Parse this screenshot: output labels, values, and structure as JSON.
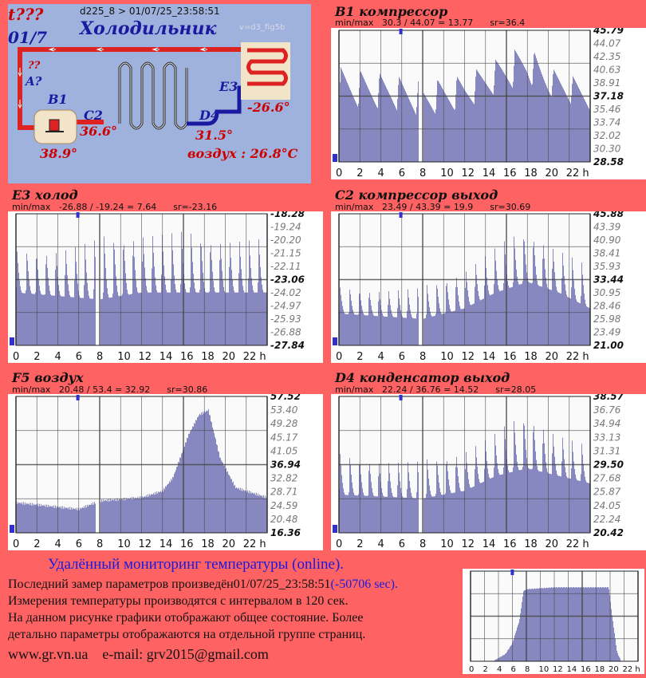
{
  "scheme": {
    "tq": "t???",
    "date_short": "01/7",
    "device_line": "d225_8  >  01/07/25_23:58:51",
    "title": "Холодильник",
    "version": "v=d3_fig5b",
    "q_mark": "??",
    "a_label": "A?",
    "b1_label": "B1",
    "b1_value": "38.9°",
    "c2_label": "C2",
    "c2_value": "36.6°",
    "d4_label": "D4",
    "d4_value": "31.5°",
    "e3_label": "E3",
    "e3_value": "-26.6°",
    "air_text": "воздух : 26.8°C"
  },
  "colors": {
    "background": "#ff6262",
    "fill": "#8888c0",
    "grid": "#444444",
    "marker": "#3030d0"
  },
  "chart_data": [
    {
      "type": "area",
      "title": "B1 компрессор",
      "stats": "min/max   30.3 / 44.07 = 13.77      sr=36.4",
      "x_ticks": [
        "0",
        "2",
        "4",
        "6",
        "8",
        "10",
        "12",
        "14",
        "16",
        "18",
        "20",
        "22 h"
      ],
      "y_ticks": [
        "45.79",
        "44.07",
        "42.35",
        "40.63",
        "38.91",
        "37.18",
        "35.46",
        "33.74",
        "32.02",
        "30.30",
        "28.58"
      ],
      "ylim": [
        28.58,
        45.79
      ],
      "pattern": "b1",
      "period": 13,
      "gap": [
        7.6,
        8.1
      ],
      "segments": [
        [
          0,
          34,
          41
        ],
        [
          5,
          34,
          40
        ],
        [
          8,
          33,
          39
        ],
        [
          12,
          34,
          40
        ],
        [
          15,
          36,
          42
        ],
        [
          18,
          37,
          44.07
        ],
        [
          20,
          36,
          41
        ],
        [
          24,
          34,
          39
        ]
      ]
    },
    {
      "type": "area",
      "title": "E3 холод",
      "stats": "min/max   -26.88 / -19.24 = 7.64      sr=-23.16",
      "x_ticks": [
        "0",
        "2",
        "4",
        "6",
        "8",
        "10",
        "12",
        "14",
        "16",
        "18",
        "20",
        "22 h"
      ],
      "y_ticks": [
        "-18.28",
        "-19.24",
        "-20.20",
        "-21.15",
        "-22.11",
        "-23.06",
        "-24.02",
        "-24.97",
        "-25.93",
        "-26.88",
        "-27.84"
      ],
      "ylim": [
        -27.84,
        -18.28
      ],
      "pattern": "spikes",
      "period": 26,
      "gap": [
        7.6,
        8.1
      ],
      "segments": [
        [
          0,
          -24,
          -21
        ],
        [
          8,
          -24.5,
          -20
        ],
        [
          12,
          -24,
          -19.24
        ],
        [
          24,
          -24,
          -20
        ]
      ]
    },
    {
      "type": "area",
      "title": "C2 компрессор выход",
      "stats": "min/max   23.49 / 43.39 = 19.9      sr=30.69",
      "x_ticks": [
        "0",
        "2",
        "4",
        "6",
        "8",
        "10",
        "12",
        "14",
        "16",
        "18",
        "20",
        "22 h"
      ],
      "y_ticks": [
        "45.88",
        "43.39",
        "40.90",
        "38.41",
        "35.93",
        "33.44",
        "30.95",
        "28.46",
        "25.98",
        "23.49",
        "21.00"
      ],
      "ylim": [
        21.0,
        45.88
      ],
      "pattern": "spikes",
      "period": 26,
      "gap": [
        7.6,
        8.1
      ],
      "segments": [
        [
          0,
          27,
          32
        ],
        [
          8,
          26,
          32
        ],
        [
          12,
          28,
          36
        ],
        [
          15,
          31,
          40
        ],
        [
          18,
          33,
          43.39
        ],
        [
          21,
          31,
          40
        ],
        [
          24,
          28,
          36
        ]
      ]
    },
    {
      "type": "area",
      "title": "F5 воздух",
      "stats": "min/max   20.48 / 53.4 = 32.92      sr=30.86",
      "x_ticks": [
        "0",
        "2",
        "4",
        "6",
        "8",
        "10",
        "12",
        "14",
        "16",
        "18",
        "20",
        "22 h"
      ],
      "y_ticks": [
        "57.52",
        "53.40",
        "49.28",
        "45.17",
        "41.05",
        "36.94",
        "32.82",
        "28.71",
        "24.59",
        "20.48",
        "16.36"
      ],
      "ylim": [
        16.36,
        57.52
      ],
      "pattern": "smooth",
      "gap": [
        7.6,
        8.1
      ],
      "segments": [
        [
          0,
          25.5,
          25.5
        ],
        [
          6,
          23.5,
          23.5
        ],
        [
          8,
          26,
          26
        ],
        [
          12,
          27,
          27
        ],
        [
          14,
          29,
          29
        ],
        [
          15,
          33,
          33
        ],
        [
          16.5,
          46,
          46
        ],
        [
          17.5,
          52,
          52
        ],
        [
          18.4,
          53.4,
          53.4
        ],
        [
          19.5,
          39,
          39
        ],
        [
          21,
          30,
          30
        ],
        [
          24,
          27,
          27
        ]
      ]
    },
    {
      "type": "area",
      "title": "D4 конденсатор выход",
      "stats": "min/max   22.24 / 36.76 = 14.52      sr=28.05",
      "x_ticks": [
        "0",
        "2",
        "4",
        "6",
        "8",
        "10",
        "12",
        "14",
        "16",
        "18",
        "20",
        "22 h"
      ],
      "y_ticks": [
        "38.57",
        "36.76",
        "34.94",
        "33.13",
        "31.31",
        "29.50",
        "27.68",
        "25.87",
        "24.05",
        "22.24",
        "20.42"
      ],
      "ylim": [
        20.42,
        38.57
      ],
      "pattern": "spikes",
      "period": 26,
      "gap": [
        7.6,
        8.1
      ],
      "segments": [
        [
          0,
          25.5,
          31
        ],
        [
          8,
          25,
          30
        ],
        [
          12,
          26,
          32
        ],
        [
          15,
          28,
          34
        ],
        [
          18,
          29,
          36.76
        ],
        [
          21,
          28,
          34
        ],
        [
          24,
          27,
          32
        ]
      ]
    },
    {
      "type": "area",
      "title": "",
      "stats": "",
      "x_ticks": [
        "0",
        "2",
        "4",
        "6",
        "8",
        "10",
        "12",
        "14",
        "16",
        "18",
        "20",
        "22 h"
      ],
      "y_ticks": [],
      "ylim": [
        0,
        100
      ],
      "pattern": "smooth",
      "segments": [
        [
          0,
          0,
          0
        ],
        [
          3.2,
          0,
          0
        ],
        [
          5,
          8,
          8
        ],
        [
          6,
          20,
          20
        ],
        [
          7,
          45,
          45
        ],
        [
          7.6,
          78,
          78
        ],
        [
          8.2,
          80,
          80
        ],
        [
          12,
          82,
          82
        ],
        [
          19.8,
          82,
          82
        ],
        [
          20.3,
          50,
          50
        ],
        [
          21,
          10,
          10
        ],
        [
          21.6,
          0,
          0
        ],
        [
          24,
          0,
          0
        ]
      ]
    }
  ],
  "footer": {
    "heading": "Удалённый мониторинг температуры (online).",
    "line1_prefix": "Последний замер параметров произведён",
    "line1_date": "01/07/25_23:58:51",
    "line1_delta": "(-50706 sec).",
    "line2": "Измерения температуры  производятся с интервалом в 120 сек.",
    "line3": "На данном рисунке графики отображают общее состояние. Более",
    "line4": "детально параметры отображаются на отдельной группе страниц.",
    "site": "www.gr.vn.ua",
    "email": "e-mail: grv2015@gmail.com"
  }
}
